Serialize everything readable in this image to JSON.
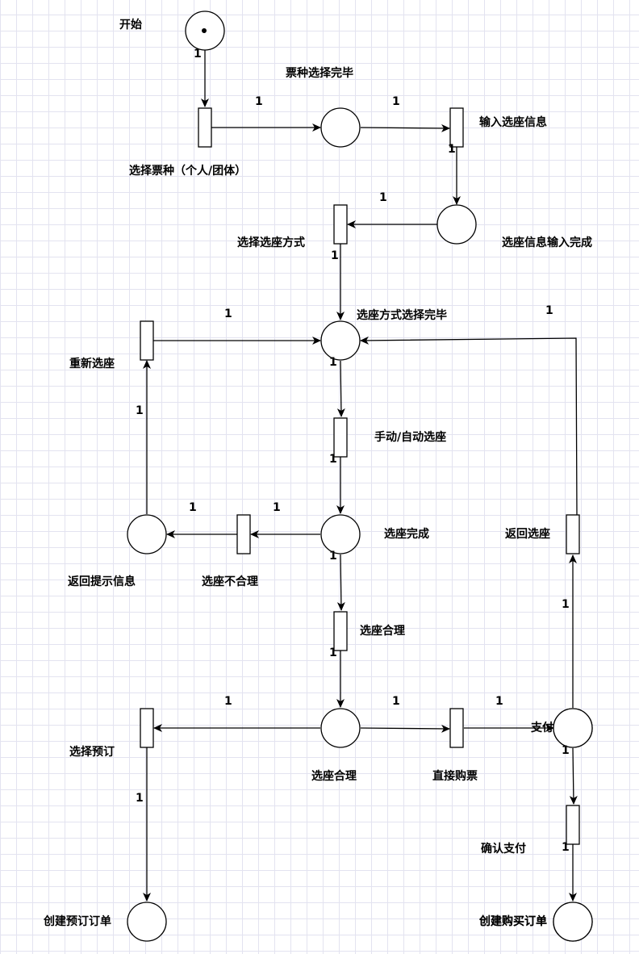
{
  "diagram": {
    "type": "petri-net",
    "labels": {
      "start": "开始",
      "p_ticket_done": "票种选择完毕",
      "t_select_ticket": "选择票种（个人/团体）",
      "t_input_seat_info": "输入选座信息",
      "p_seat_info_done": "选座信息输入完成",
      "t_select_method": "选择选座方式",
      "p_method_done": "选座方式选择完毕",
      "t_reselect": "重新选座",
      "t_manual_auto": "手动/自动选座",
      "p_seat_done": "选座完成",
      "t_unreasonable": "选座不合理",
      "p_hint": "返回提示信息",
      "t_reasonable": "选座合理",
      "p_reasonable": "选座合理",
      "t_reserve": "选择预订",
      "t_buy": "直接购票",
      "p_pay": "支付",
      "t_back": "返回选座",
      "t_confirm": "确认支付",
      "p_reserve_order": "创建预订订单",
      "p_buy_order": "创建购买订单"
    },
    "weight": "1"
  }
}
